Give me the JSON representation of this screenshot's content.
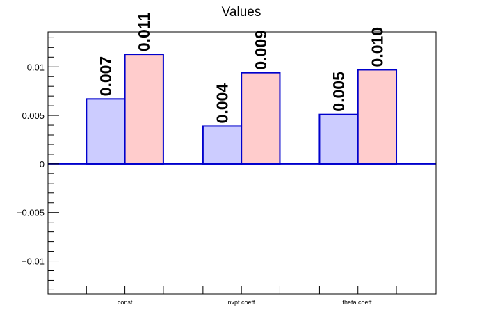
{
  "chart_data": {
    "type": "bar",
    "title": "Values",
    "categories": [
      "const",
      "invpt coeff.",
      "theta coeff."
    ],
    "series": [
      {
        "values": [
          0.0067,
          0.0039,
          0.0051
        ],
        "labels": [
          "0.007",
          "0.004",
          "0.005"
        ],
        "color": "#ccccff"
      },
      {
        "values": [
          0.0113,
          0.0094,
          0.0097
        ],
        "labels": [
          "0.011",
          "0.009",
          "0.010"
        ],
        "color": "#ffcccc"
      }
    ],
    "bar_edge_color": "#0000cc",
    "ylim": [
      -0.0134,
      0.0136
    ],
    "yticks": [
      -0.01,
      -0.005,
      0,
      0.005,
      0.01
    ],
    "ytick_labels": [
      "−0.01",
      "−0.005",
      "0",
      "0.005",
      "0.01"
    ],
    "xlabel": "",
    "ylabel": "",
    "grid": false,
    "legend": "none"
  }
}
